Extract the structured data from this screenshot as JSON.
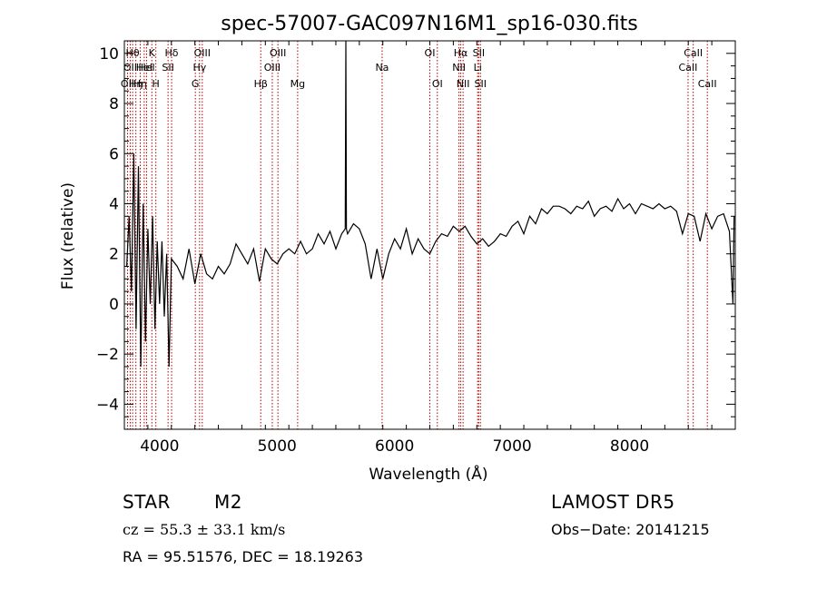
{
  "chart_data": {
    "type": "line",
    "title": "spec-57007-GAC097N16M1_sp16-030.fits",
    "xlabel": "Wavelength (Å)",
    "ylabel": "Flux (relative)",
    "xlim": [
      3700,
      8900
    ],
    "ylim": [
      -5,
      10.5
    ],
    "xticks": [
      4000,
      5000,
      6000,
      7000,
      8000
    ],
    "yticks": [
      -4,
      -2,
      0,
      2,
      4,
      6,
      8,
      10
    ],
    "xtick_labels": [
      "4000",
      "5000",
      "6000",
      "7000",
      "8000"
    ],
    "ytick_labels": [
      "−4",
      "−2",
      "0",
      "2",
      "4",
      "6",
      "8",
      "10"
    ],
    "grid": false,
    "line_color": "#000000",
    "marker_line_color": "#b40000",
    "series": [
      {
        "x": [
          3720,
          3740,
          3760,
          3780,
          3800,
          3820,
          3840,
          3860,
          3880,
          3900,
          3920,
          3940,
          3960,
          3980,
          4000,
          4020,
          4040,
          4060,
          4080,
          4100,
          4150,
          4200,
          4250,
          4300,
          4350,
          4400,
          4450,
          4500,
          4550,
          4600,
          4650,
          4700,
          4750,
          4800,
          4850,
          4900,
          4950,
          5000,
          5050,
          5100,
          5150,
          5200,
          5250,
          5300,
          5350,
          5400,
          5450,
          5500,
          5550,
          5580,
          5585,
          5590,
          5600,
          5650,
          5700,
          5750,
          5800,
          5850,
          5900,
          5950,
          6000,
          6050,
          6100,
          6150,
          6200,
          6250,
          6300,
          6350,
          6400,
          6450,
          6500,
          6550,
          6600,
          6650,
          6700,
          6750,
          6800,
          6850,
          6900,
          6950,
          7000,
          7050,
          7100,
          7150,
          7200,
          7250,
          7300,
          7350,
          7400,
          7450,
          7500,
          7550,
          7600,
          7650,
          7700,
          7750,
          7800,
          7850,
          7900,
          7950,
          8000,
          8050,
          8100,
          8150,
          8200,
          8250,
          8300,
          8350,
          8400,
          8450,
          8500,
          8550,
          8600,
          8650,
          8700,
          8750,
          8800,
          8850,
          8880,
          8890
        ],
        "y": [
          1.5,
          3.5,
          0.5,
          6.0,
          -1.0,
          5.5,
          -2.5,
          4.0,
          -1.5,
          3.0,
          0.0,
          3.5,
          -1.0,
          2.5,
          0.0,
          2.5,
          -0.5,
          2.0,
          -2.5,
          1.8,
          1.5,
          1.0,
          2.2,
          0.8,
          2.0,
          1.2,
          1.0,
          1.5,
          1.2,
          1.6,
          2.4,
          2.0,
          1.6,
          2.2,
          0.9,
          2.2,
          1.8,
          1.6,
          2.0,
          2.2,
          2.0,
          2.5,
          2.0,
          2.2,
          2.8,
          2.4,
          2.9,
          2.2,
          2.8,
          3.0,
          10.5,
          3.0,
          2.8,
          3.2,
          3.0,
          2.4,
          1.0,
          2.2,
          1.0,
          2.0,
          2.6,
          2.2,
          3.0,
          2.0,
          2.6,
          2.2,
          2.0,
          2.5,
          2.8,
          2.7,
          3.1,
          2.9,
          3.1,
          2.7,
          2.4,
          2.6,
          2.3,
          2.5,
          2.8,
          2.7,
          3.1,
          3.3,
          2.8,
          3.5,
          3.2,
          3.8,
          3.6,
          3.9,
          3.9,
          3.8,
          3.6,
          3.9,
          3.8,
          4.1,
          3.5,
          3.8,
          3.9,
          3.7,
          4.2,
          3.8,
          4.0,
          3.6,
          4.0,
          3.9,
          3.8,
          4.0,
          3.8,
          3.9,
          3.7,
          2.8,
          3.6,
          3.5,
          2.5,
          3.6,
          3.0,
          3.5,
          3.6,
          2.9,
          0.0,
          3.5
        ]
      }
    ],
    "spectral_lines": [
      {
        "x": 3727,
        "label": "OII",
        "row": 3
      },
      {
        "x": 3750,
        "label": "OII",
        "row": 2
      },
      {
        "x": 3770,
        "label": "Hθ",
        "row": 1
      },
      {
        "x": 3798,
        "label": "Hη",
        "row": 3
      },
      {
        "x": 3835,
        "label": "Hη",
        "row": 3
      },
      {
        "x": 3869,
        "label": "HeI",
        "row": 2
      },
      {
        "x": 3889,
        "label": "HeI",
        "row": 2
      },
      {
        "x": 3934,
        "label": "K",
        "row": 1
      },
      {
        "x": 3968,
        "label": "H",
        "row": 3
      },
      {
        "x": 4072,
        "label": "SII",
        "row": 2
      },
      {
        "x": 4102,
        "label": "Hδ",
        "row": 1
      },
      {
        "x": 4304,
        "label": "G",
        "row": 3
      },
      {
        "x": 4340,
        "label": "Hγ",
        "row": 2
      },
      {
        "x": 4363,
        "label": "OIII",
        "row": 1
      },
      {
        "x": 4861,
        "label": "Hβ",
        "row": 3
      },
      {
        "x": 4959,
        "label": "OIII",
        "row": 2
      },
      {
        "x": 5007,
        "label": "OIII",
        "row": 1
      },
      {
        "x": 5175,
        "label": "Mg",
        "row": 3
      },
      {
        "x": 5894,
        "label": "Na",
        "row": 2
      },
      {
        "x": 6300,
        "label": "OI",
        "row": 1
      },
      {
        "x": 6364,
        "label": "OI",
        "row": 3
      },
      {
        "x": 6548,
        "label": "NII",
        "row": 2
      },
      {
        "x": 6563,
        "label": "Hα",
        "row": 1
      },
      {
        "x": 6583,
        "label": "NII",
        "row": 3
      },
      {
        "x": 6707,
        "label": "Li",
        "row": 2
      },
      {
        "x": 6716,
        "label": "SII",
        "row": 1
      },
      {
        "x": 6731,
        "label": "SII",
        "row": 3
      },
      {
        "x": 8498,
        "label": "CaII",
        "row": 2
      },
      {
        "x": 8542,
        "label": "CaII",
        "row": 1
      },
      {
        "x": 8662,
        "label": "CaII",
        "row": 3
      }
    ]
  },
  "info": {
    "object_class": "STAR",
    "subclass": "M2",
    "survey": "LAMOST DR5",
    "cz": "cz = 55.3 ± 33.1 km/s",
    "obs_date": "Obs−Date: 20141215",
    "coords": "RA =  95.51576, DEC =  18.19263"
  }
}
